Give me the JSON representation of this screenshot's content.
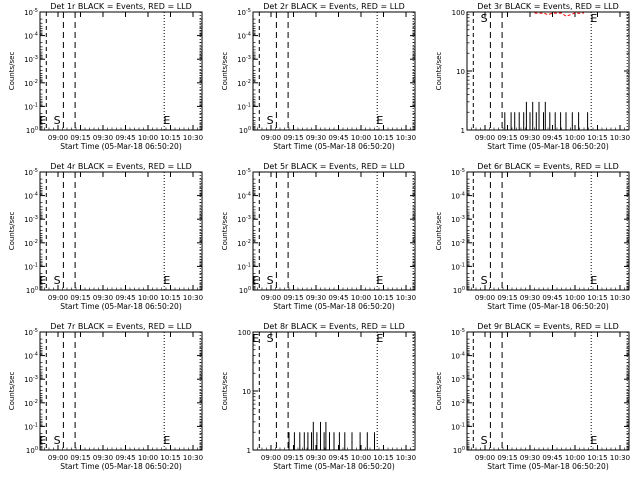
{
  "chart_data": [
    {
      "type": "line",
      "title": "Det 1r BLACK = Events, RED = LLD",
      "xlabel": "Start Time (05-Mar-18 06:50:20)",
      "ylabel": "Counts/sec",
      "y_scale": "log",
      "yticks": [
        "10^0",
        "10^-1",
        "10^-2",
        "10^-3",
        "10^-4",
        "10^-5"
      ],
      "xticks": [
        "09:00",
        "09:15",
        "09:30",
        "09:45",
        "10:00",
        "10:15",
        "10:30"
      ],
      "markers": [
        "E",
        "S",
        "E"
      ],
      "events_series": [],
      "lld_series": []
    },
    {
      "type": "line",
      "title": "Det 2r BLACK = Events, RED = LLD",
      "xlabel": "Start Time (05-Mar-18 06:50:20)",
      "ylabel": "Counts/sec",
      "y_scale": "log",
      "yticks": [
        "10^0",
        "10^-1",
        "10^-2",
        "10^-3",
        "10^-4",
        "10^-5"
      ],
      "xticks": [
        "09:00",
        "09:15",
        "09:30",
        "09:45",
        "10:00",
        "10:15",
        "10:30"
      ],
      "markers": [
        "S",
        "E"
      ],
      "events_series": [],
      "lld_series": []
    },
    {
      "type": "line",
      "title": "Det 3r BLACK = Events, RED = LLD",
      "xlabel": "Start Time (05-Mar-18 06:50:20)",
      "ylabel": "Counts/sec",
      "y_scale": "log",
      "ylim": [
        1,
        100
      ],
      "yticks": [
        "1",
        "10",
        "100"
      ],
      "xticks": [
        "09:00",
        "09:15",
        "09:30",
        "09:45",
        "10:00",
        "10:15",
        "10:30"
      ],
      "markers": [
        "S",
        "E"
      ],
      "events_series": [
        [
          9.2,
          1
        ],
        [
          9.22,
          2
        ],
        [
          9.27,
          1
        ],
        [
          9.29,
          2
        ],
        [
          9.31,
          1
        ],
        [
          9.33,
          2
        ],
        [
          9.36,
          1
        ],
        [
          9.38,
          2
        ],
        [
          9.41,
          1
        ],
        [
          9.43,
          2
        ],
        [
          9.46,
          3
        ],
        [
          9.48,
          1
        ],
        [
          9.5,
          2
        ],
        [
          9.53,
          3
        ],
        [
          9.55,
          1
        ],
        [
          9.57,
          2
        ],
        [
          9.6,
          3
        ],
        [
          9.62,
          1
        ],
        [
          9.65,
          2
        ],
        [
          9.67,
          3
        ],
        [
          9.7,
          1
        ],
        [
          9.72,
          2
        ],
        [
          9.75,
          1
        ],
        [
          9.78,
          2
        ],
        [
          9.81,
          1
        ],
        [
          9.84,
          2
        ],
        [
          9.87,
          1
        ],
        [
          9.9,
          2
        ],
        [
          9.94,
          1
        ],
        [
          9.97,
          2
        ],
        [
          10.0,
          1
        ],
        [
          10.04,
          2
        ],
        [
          10.1,
          1
        ],
        [
          10.14,
          2
        ],
        [
          10.18,
          1
        ]
      ],
      "lld_series": [
        [
          9.55,
          100
        ],
        [
          9.6,
          95
        ],
        [
          9.65,
          100
        ],
        [
          9.7,
          90
        ],
        [
          9.75,
          100
        ],
        [
          9.8,
          95
        ],
        [
          9.85,
          100
        ],
        [
          9.9,
          85
        ],
        [
          9.95,
          90
        ],
        [
          10.0,
          100
        ],
        [
          10.05,
          95
        ],
        [
          10.1,
          100
        ]
      ]
    },
    {
      "type": "line",
      "title": "Det 4r BLACK = Events, RED = LLD",
      "xlabel": "Start Time (05-Mar-18 06:50:20)",
      "ylabel": "Counts/sec",
      "y_scale": "log",
      "yticks": [
        "10^0",
        "10^-1",
        "10^-2",
        "10^-3",
        "10^-4",
        "10^-5"
      ],
      "xticks": [
        "09:00",
        "09:15",
        "09:30",
        "09:45",
        "10:00",
        "10:15",
        "10:30"
      ],
      "markers": [
        "E",
        "S",
        "E"
      ],
      "events_series": [],
      "lld_series": []
    },
    {
      "type": "line",
      "title": "Det 5r BLACK = Events, RED = LLD",
      "xlabel": "Start Time (05-Mar-18 06:50:20)",
      "ylabel": "Counts/sec",
      "y_scale": "log",
      "yticks": [
        "10^0",
        "10^-1",
        "10^-2",
        "10^-3",
        "10^-4",
        "10^-5"
      ],
      "xticks": [
        "09:00",
        "09:15",
        "09:30",
        "09:45",
        "10:00",
        "10:15",
        "10:30"
      ],
      "markers": [
        "E",
        "S",
        "E"
      ],
      "events_series": [],
      "lld_series": []
    },
    {
      "type": "line",
      "title": "Det 6r BLACK = Events, RED = LLD",
      "xlabel": "Start Time (05-Mar-18 06:50:20)",
      "ylabel": "Counts/sec",
      "y_scale": "log",
      "yticks": [
        "10^0",
        "10^-1",
        "10^-2",
        "10^-3",
        "10^-4",
        "10^-5"
      ],
      "xticks": [
        "09:00",
        "09:15",
        "09:30",
        "09:45",
        "10:00",
        "10:15",
        "10:30"
      ],
      "markers": [
        "S",
        "E"
      ],
      "events_series": [],
      "lld_series": []
    },
    {
      "type": "line",
      "title": "Det 7r BLACK = Events, RED = LLD",
      "xlabel": "Start Time (05-Mar-18 06:50:20)",
      "ylabel": "Counts/sec",
      "y_scale": "log",
      "yticks": [
        "10^0",
        "10^-1",
        "10^-2",
        "10^-3",
        "10^-4",
        "10^-5"
      ],
      "xticks": [
        "09:00",
        "09:15",
        "09:30",
        "09:45",
        "10:00",
        "10:15",
        "10:30"
      ],
      "markers": [
        "E",
        "S",
        "E"
      ],
      "events_series": [],
      "lld_series": []
    },
    {
      "type": "line",
      "title": "Det 8r BLACK = Events, RED = LLD",
      "xlabel": "Start Time (05-Mar-18 06:50:20)",
      "ylabel": "Counts/sec",
      "y_scale": "log",
      "ylim": [
        1,
        100
      ],
      "yticks": [
        "1",
        "10",
        "100"
      ],
      "xticks": [
        "09:00",
        "09:15",
        "09:30",
        "09:45",
        "10:00",
        "10:15",
        "10:30"
      ],
      "markers": [
        "E",
        "S",
        "E"
      ],
      "events_series": [
        [
          9.2,
          2
        ],
        [
          9.23,
          1
        ],
        [
          9.26,
          2
        ],
        [
          9.29,
          1
        ],
        [
          9.32,
          2
        ],
        [
          9.35,
          1
        ],
        [
          9.37,
          2
        ],
        [
          9.39,
          1
        ],
        [
          9.41,
          2
        ],
        [
          9.43,
          1
        ],
        [
          9.45,
          2
        ],
        [
          9.47,
          3
        ],
        [
          9.49,
          1
        ],
        [
          9.51,
          2
        ],
        [
          9.53,
          1
        ],
        [
          9.55,
          3
        ],
        [
          9.57,
          1
        ],
        [
          9.59,
          2
        ],
        [
          9.61,
          3
        ],
        [
          9.63,
          1
        ],
        [
          9.65,
          2
        ],
        [
          9.67,
          1
        ],
        [
          9.7,
          2
        ],
        [
          9.73,
          1
        ],
        [
          9.76,
          2
        ],
        [
          9.79,
          1
        ],
        [
          9.82,
          2
        ],
        [
          9.86,
          1
        ],
        [
          9.9,
          2
        ],
        [
          9.95,
          1
        ],
        [
          9.99,
          2
        ],
        [
          10.03,
          1
        ],
        [
          10.07,
          2
        ],
        [
          10.11,
          1
        ],
        [
          10.15,
          2
        ]
      ],
      "lld_series": []
    },
    {
      "type": "line",
      "title": "Det 9r BLACK = Events, RED = LLD",
      "xlabel": "Start Time (05-Mar-18 06:50:20)",
      "ylabel": "Counts/sec",
      "y_scale": "log",
      "yticks": [
        "10^0",
        "10^-1",
        "10^-2",
        "10^-3",
        "10^-4",
        "10^-5"
      ],
      "xticks": [
        "09:00",
        "09:15",
        "09:30",
        "09:45",
        "10:00",
        "10:15",
        "10:30"
      ],
      "markers": [
        "S",
        "E"
      ],
      "events_series": [],
      "lld_series": []
    }
  ]
}
